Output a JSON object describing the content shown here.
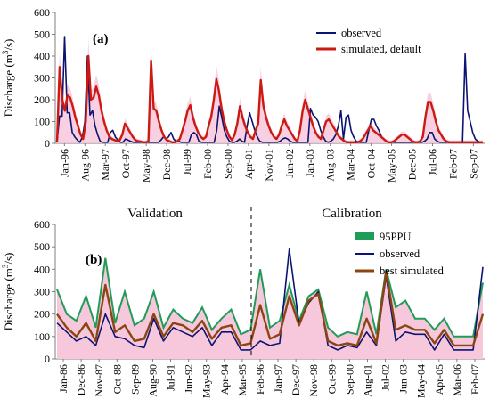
{
  "colors": {
    "observed": "#0b1470",
    "simulated_default": "#cc1a12",
    "best_simulated": "#8b4513",
    "ppu95": "#1f9c57",
    "ppu_shade": "#f7c8dc",
    "axis": "#7f7f7f"
  },
  "chart_data": [
    {
      "type": "line",
      "panel_label": "(a)",
      "ylabel": "Discharge (m³/s)",
      "ylim": [
        0,
        600
      ],
      "yticks": [
        0,
        100,
        200,
        300,
        400,
        500,
        600
      ],
      "x_tick_labels": [
        "Jan-96",
        "Aug-96",
        "Mar-97",
        "Oct-97",
        "May-98",
        "Dec-98",
        "Jul-99",
        "Feb-00",
        "Sep-00",
        "Apr-01",
        "Nov-01",
        "Jun-02",
        "Jan-03",
        "Aug-03",
        "Mar-04",
        "Oct-04",
        "May-05",
        "Dec-05",
        "Jul-06",
        "Feb-07",
        "Sep-07"
      ],
      "x_range_months": [
        "1996-01",
        "2007-12"
      ],
      "legend": {
        "position": "top-right"
      },
      "series": [
        {
          "name": "observed",
          "values": [
            5,
            125,
            125,
            490,
            140,
            140,
            50,
            30,
            15,
            5,
            30,
            100,
            400,
            130,
            150,
            80,
            40,
            10,
            5,
            5,
            5,
            50,
            60,
            30,
            15,
            5,
            5,
            20,
            15,
            10,
            5,
            5,
            5,
            5,
            5,
            5,
            5,
            5,
            5,
            5,
            5,
            15,
            30,
            20,
            30,
            50,
            20,
            10,
            10,
            5,
            5,
            5,
            5,
            40,
            50,
            40,
            10,
            5,
            5,
            5,
            5,
            5,
            5,
            60,
            170,
            120,
            60,
            30,
            10,
            5,
            5,
            10,
            20,
            10,
            5,
            80,
            140,
            100,
            60,
            30,
            10,
            5,
            5,
            5,
            5,
            5,
            5,
            5,
            10,
            20,
            25,
            20,
            10,
            5,
            5,
            5,
            5,
            5,
            5,
            5,
            160,
            130,
            120,
            100,
            60,
            30,
            10,
            5,
            10,
            20,
            40,
            80,
            150,
            20,
            120,
            130,
            60,
            30,
            10,
            5,
            5,
            5,
            5,
            60,
            110,
            110,
            80,
            60,
            30,
            20,
            10,
            5,
            5,
            5,
            5,
            5,
            5,
            5,
            5,
            5,
            5,
            5,
            5,
            5,
            5,
            10,
            20,
            50,
            50,
            20,
            10,
            5,
            5,
            5,
            5,
            5,
            5,
            5,
            5,
            5,
            5,
            410,
            150,
            100,
            50,
            20,
            10,
            5,
            5
          ]
        },
        {
          "name": "simulated, default",
          "values": [
            5,
            350,
            200,
            150,
            220,
            210,
            170,
            120,
            80,
            40,
            20,
            100,
            400,
            200,
            210,
            260,
            220,
            150,
            100,
            60,
            30,
            20,
            15,
            10,
            15,
            40,
            90,
            70,
            50,
            30,
            15,
            10,
            8,
            5,
            5,
            10,
            380,
            160,
            150,
            100,
            60,
            30,
            15,
            10,
            5,
            5,
            10,
            20,
            60,
            100,
            150,
            175,
            120,
            80,
            50,
            30,
            20,
            30,
            80,
            120,
            200,
            295,
            240,
            160,
            100,
            60,
            30,
            15,
            40,
            90,
            170,
            120,
            80,
            50,
            30,
            20,
            60,
            90,
            290,
            170,
            120,
            80,
            50,
            30,
            20,
            40,
            80,
            110,
            80,
            60,
            40,
            20,
            10,
            60,
            150,
            200,
            160,
            120,
            80,
            50,
            30,
            20,
            60,
            100,
            110,
            90,
            70,
            50,
            30,
            20,
            10,
            5,
            5,
            5,
            5,
            5,
            10,
            20,
            40,
            60,
            80,
            60,
            50,
            40,
            30,
            20,
            10,
            5,
            5,
            10,
            20,
            30,
            40,
            40,
            30,
            20,
            10,
            5,
            5,
            10,
            30,
            120,
            190,
            190,
            150,
            100,
            60,
            40,
            20,
            10,
            5,
            5,
            5,
            5,
            5,
            5,
            5,
            5,
            5,
            5,
            5,
            5,
            5,
            5
          ]
        }
      ]
    },
    {
      "type": "line",
      "panel_label": "(b)",
      "ylabel": "Discharge (m³/s)",
      "ylim": [
        0,
        600
      ],
      "yticks": [
        0,
        100,
        200,
        300,
        400,
        500,
        600
      ],
      "x_tick_labels": [
        "Jan-86",
        "Dec-86",
        "Nov-87",
        "Oct-88",
        "Sep-89",
        "Aug-90",
        "Jul-91",
        "Jun-92",
        "May-93",
        "Apr-94",
        "Mar-95",
        "Feb-96",
        "Jan-97",
        "Dec-97",
        "Nov-98",
        "Oct-99",
        "Sep-00",
        "Aug-01",
        "Jul-02",
        "Jun-03",
        "May-04",
        "Apr-05",
        "Mar-06",
        "Feb-07"
      ],
      "x_range_months": [
        "1986-01",
        "2007-12"
      ],
      "divider_at": "Feb-96",
      "period_labels": {
        "left": "Validation",
        "right": "Calibration"
      },
      "legend": {
        "position": "top-right"
      },
      "series": [
        {
          "name": "95PPU",
          "upper": [
            310,
            200,
            170,
            280,
            140,
            450,
            160,
            300,
            150,
            180,
            300,
            140,
            220,
            180,
            160,
            230,
            130,
            180,
            220,
            110,
            130,
            400,
            140,
            170,
            330,
            170,
            280,
            310,
            140,
            100,
            120,
            110,
            300,
            110,
            400,
            230,
            260,
            180,
            180,
            130,
            180,
            100,
            100,
            100,
            340
          ]
        },
        {
          "name": "observed",
          "values": [
            160,
            120,
            80,
            100,
            60,
            200,
            100,
            90,
            60,
            50,
            180,
            80,
            140,
            120,
            100,
            140,
            60,
            120,
            120,
            40,
            40,
            80,
            60,
            70,
            490,
            160,
            250,
            300,
            60,
            40,
            60,
            50,
            120,
            60,
            370,
            80,
            120,
            110,
            110,
            40,
            110,
            40,
            40,
            40,
            410
          ]
        },
        {
          "name": "best simulated",
          "values": [
            200,
            140,
            100,
            160,
            80,
            330,
            120,
            150,
            80,
            90,
            200,
            100,
            160,
            150,
            120,
            170,
            90,
            140,
            150,
            60,
            70,
            240,
            90,
            110,
            280,
            150,
            260,
            290,
            80,
            60,
            70,
            60,
            180,
            70,
            390,
            130,
            150,
            130,
            130,
            70,
            130,
            60,
            60,
            60,
            200
          ]
        }
      ]
    }
  ]
}
